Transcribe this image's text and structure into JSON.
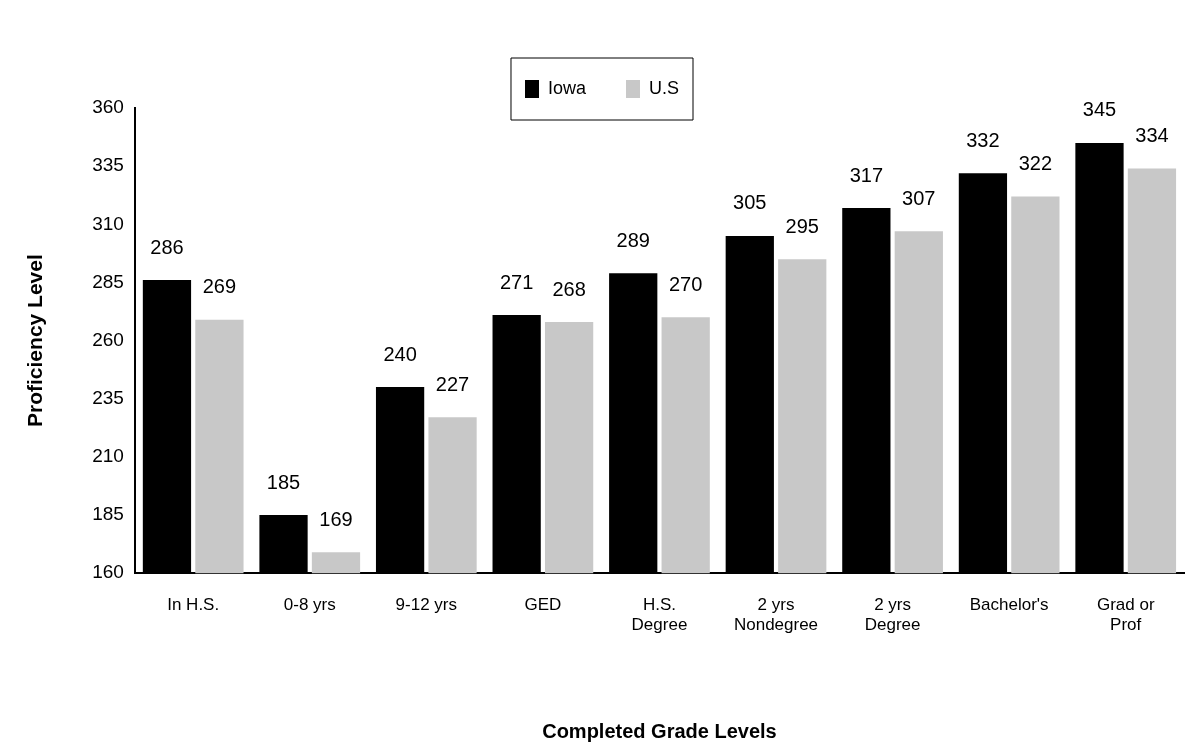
{
  "chart_data": {
    "type": "bar",
    "xlabel": "Completed Grade Levels",
    "ylabel": "Proficiency Level",
    "categories": [
      "In H.S.",
      "0-8 yrs",
      "9-12 yrs",
      "GED",
      "H.S.\nDegree",
      "2 yrs\nNondegree",
      "2 yrs\nDegree",
      "Bachelor's",
      "Grad or\nProf"
    ],
    "series": [
      {
        "name": "Iowa",
        "color": "#000000",
        "values": [
          286,
          185,
          240,
          271,
          289,
          305,
          317,
          332,
          345
        ]
      },
      {
        "name": "U.S",
        "color": "#c8c8c8",
        "values": [
          269,
          169,
          227,
          268,
          270,
          295,
          307,
          322,
          334
        ]
      }
    ],
    "ylim": [
      160,
      360
    ],
    "yticks": [
      160,
      185,
      210,
      235,
      260,
      285,
      310,
      335,
      360
    ],
    "data_labels": true,
    "grid": false,
    "legend": "top"
  }
}
